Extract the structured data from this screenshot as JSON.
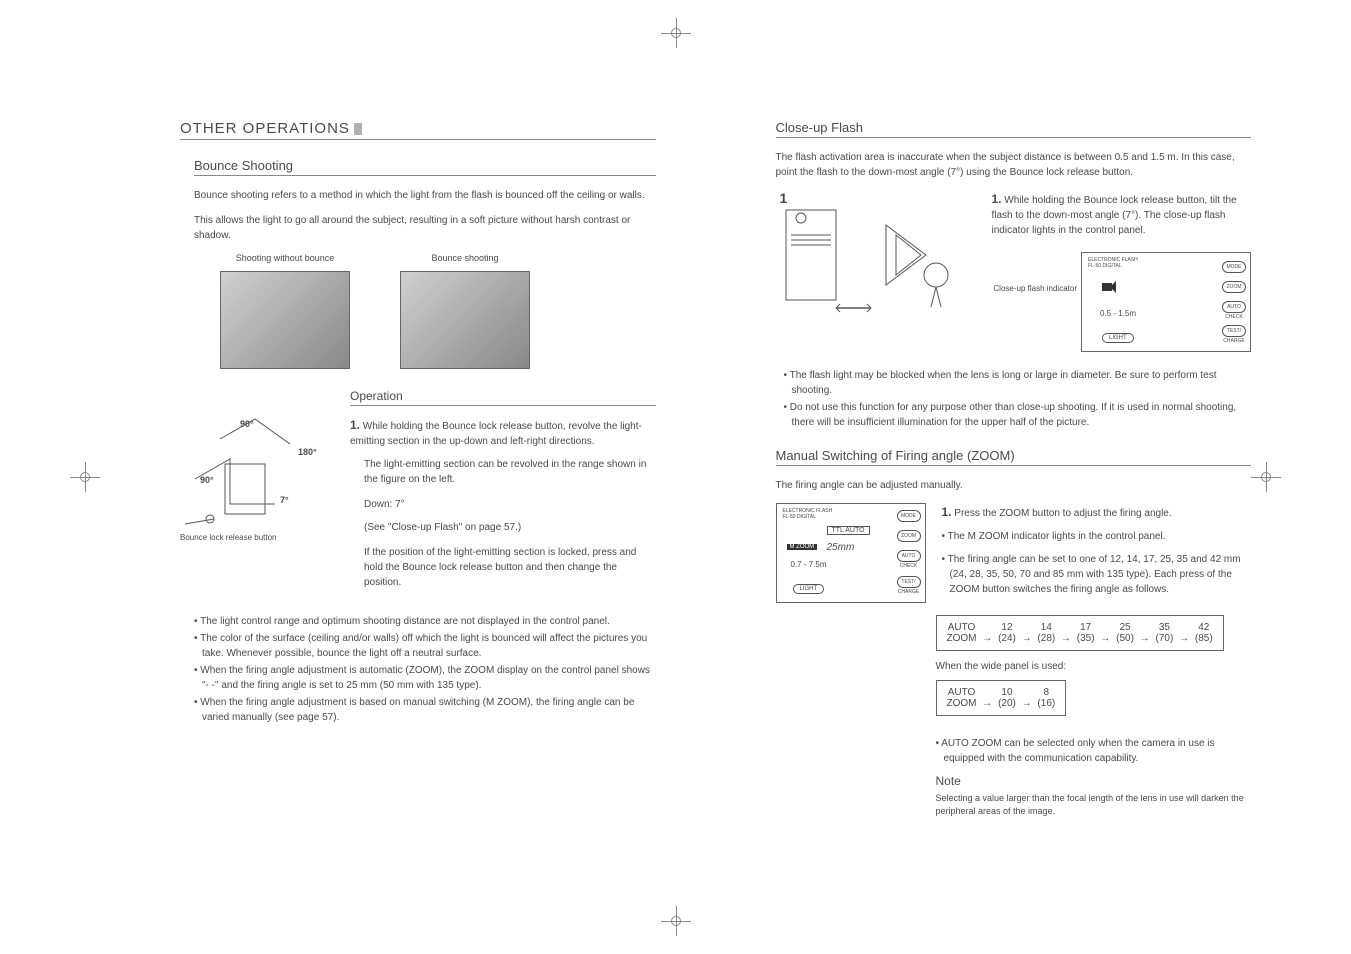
{
  "left": {
    "mainHeading": "OTHER OPERATIONS",
    "bounceHeading": "Bounce Shooting",
    "bouncePara1": "Bounce shooting refers to a method in which the light from the flash is bounced off the ceiling or walls.",
    "bouncePara2": "This allows the light to go all around the subject, resulting in a soft picture without harsh contrast or shadow.",
    "caption1": "Shooting without bounce",
    "caption2": "Bounce shooting",
    "operationHeading": "Operation",
    "op1": "While holding the Bounce lock release button, revolve the light-emitting section in the up-down and left-right directions.",
    "op1b": "The light-emitting section can be revolved in the range shown in the figure on the left.",
    "opDown": "Down: 7°",
    "opSee": "(See \"Close-up Flash\" on page 57.)",
    "opLocked": "If the position of the light-emitting section is locked, press and hold the Bounce lock release button and then change the position.",
    "releaseCaption": "Bounce lock release button",
    "angle90a": "90°",
    "angle180": "180°",
    "angle90b": "90°",
    "angle7": "7°",
    "bullets": [
      "The light control range and optimum shooting distance are not displayed in the control panel.",
      "The color of the surface (ceiling and/or walls) off which the light is bounced will affect the pictures you take. Whenever possible, bounce the light off a neutral surface.",
      "When the firing angle adjustment is automatic (ZOOM), the ZOOM display on the control panel shows \"- -\" and the firing angle is set to 25 mm (50 mm with 135 type).",
      "When the firing angle adjustment is based on manual switching (M ZOOM), the firing angle can be varied manually (see page 57)."
    ]
  },
  "right": {
    "closeupHeading": "Close-up Flash",
    "closeupPara": "The flash activation area is inaccurate when the subject distance is between 0.5 and 1.5 m. In this case, point the flash to the down-most angle (7°) using the Bounce lock release button.",
    "closeup1": "While holding the Bounce lock release button, tilt the flash to the down-most angle (7°). The close-up flash indicator lights in the control panel.",
    "indicatorLabel": "Close-up flash indicator",
    "flashNum": "1",
    "closeupBullets": [
      "The flash light may be blocked when the lens is long or large in diameter. Be sure to perform test shooting.",
      "Do not use this function for any purpose other than close-up shooting. If it is used in normal shooting, there will be insufficient illumination for the upper half of the picture."
    ],
    "manualHeading": "Manual Switching of Firing angle (ZOOM)",
    "manualPara": "The firing angle can be adjusted manually.",
    "manual1": "Press the ZOOM button to adjust the firing angle.",
    "manualB1": "The M ZOOM indicator lights in the control panel.",
    "manualB2": "The firing angle can be set to one of 12, 14, 17, 25, 35 and 42 mm (24, 28, 35, 50, 70 and 85 mm with 135 type). Each press of the ZOOM button switches the firing angle as follows.",
    "zoomFlow": {
      "start": "AUTO\nZOOM",
      "steps": [
        "12\n(24)",
        "14\n(28)",
        "17\n(35)",
        "25\n(50)",
        "35\n(70)",
        "42\n(85)"
      ]
    },
    "wideLabel": "When the wide panel is used:",
    "wideFlow": {
      "start": "AUTO\nZOOM",
      "steps": [
        "10\n(20)",
        "8\n(16)"
      ]
    },
    "autoZoomBullet": "AUTO ZOOM can be selected only when the camera in use is equipped with the communication capability.",
    "noteHeading": "Note",
    "noteText": "Selecting a value larger than the focal length of the lens in use will darken the peripheral areas of the image.",
    "panelLabels": {
      "title": "ELECTRONIC FLASH\nFL-50 DIGITAL",
      "mode": "MODE",
      "zoom": "ZOOM",
      "auto": "AUTO\nCHECK",
      "test": "TEST/\nCHARGE",
      "light": "LIGHT",
      "ttl": "TTL AUTO",
      "mzoom": "M ZOOM",
      "dist": "0.5 - 1.5m",
      "dist2": "0.7 - 7.5m",
      "mm": "25mm"
    }
  }
}
